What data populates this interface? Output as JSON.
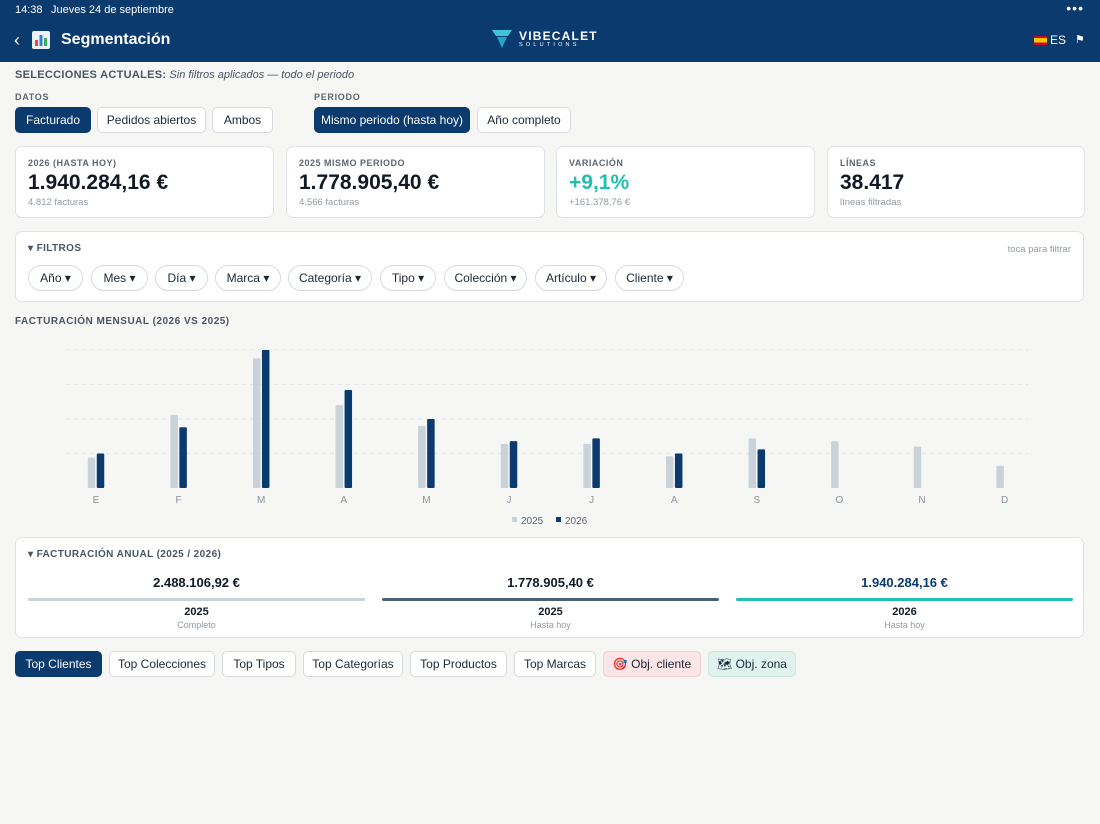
{
  "status_bar": {
    "time": "14:38",
    "date": "Jueves 24 de septiembre",
    "dots": "•••"
  },
  "header": {
    "back": "‹",
    "title": "Segmentación",
    "title_icon": "bar-chart-icon",
    "logo_name": "VIBECALET",
    "logo_sub": "SOLUTIONS",
    "language": "ES",
    "flag_action_icon": "flag-icon"
  },
  "selections": {
    "label": "SELECCIONES ACTUALES:",
    "value": "Sin filtros aplicados — todo el periodo"
  },
  "datos": {
    "label": "DATOS",
    "options": [
      "Facturado",
      "Pedidos abiertos",
      "Ambos"
    ],
    "selected": "Facturado"
  },
  "periodo": {
    "label": "PERIODO",
    "options": [
      "Mismo periodo (hasta hoy)",
      "Año completo"
    ],
    "selected": "Mismo periodo (hasta hoy)"
  },
  "kpis": [
    {
      "label": "2026 (HASTA HOY)",
      "value": "1.940.284,16 €",
      "sub": "4.812 facturas"
    },
    {
      "label": "2025 MISMO PERIODO",
      "value": "1.778.905,40 €",
      "sub": "4.566 facturas"
    },
    {
      "label": "VARIACIÓN",
      "value": "+9,1%",
      "sub": "+161.378,76 €"
    },
    {
      "label": "LÍNEAS",
      "value": "38.417",
      "sub": "líneas filtradas"
    }
  ],
  "filters": {
    "title": "▾ FILTROS",
    "hint": "toca para filtrar",
    "chips": [
      "Año ▾",
      "Mes ▾",
      "Día ▾",
      "Marca ▾",
      "Categoría ▾",
      "Tipo ▾",
      "Colección ▾",
      "Artículo ▾",
      "Cliente ▾"
    ]
  },
  "monthly_chart": {
    "title": "FACTURACIÓN MENSUAL (2026 VS 2025)"
  },
  "chart_data": {
    "type": "bar",
    "title": "FACTURACIÓN MENSUAL (2026 VS 2025)",
    "categories": [
      "E",
      "F",
      "M",
      "A",
      "M",
      "J",
      "J",
      "A",
      "S",
      "O",
      "N",
      "D"
    ],
    "series": [
      {
        "name": "2025",
        "color": "#c9d1d9",
        "values": [
          22,
          53,
          94,
          60,
          45,
          32,
          32,
          23,
          36,
          34,
          30,
          16
        ]
      },
      {
        "name": "2026",
        "color": "#0b3a6e",
        "values": [
          25,
          44,
          100,
          71,
          50,
          34,
          36,
          25,
          28,
          null,
          null,
          null
        ]
      }
    ],
    "ylim": [
      0,
      100
    ],
    "grid": true,
    "legend_position": "bottom-center"
  },
  "annual": {
    "title": "▾ FACTURACIÓN ANUAL (2025 / 2026)",
    "columns": [
      {
        "value": "2.488.106,92 €",
        "year": "2025",
        "sub": "Completo",
        "color": "#c9d1d9"
      },
      {
        "value": "1.778.905,40 €",
        "year": "2025",
        "sub": "Hasta hoy",
        "color": "#4a6278"
      },
      {
        "value": "1.940.284,16 €",
        "year": "2026",
        "sub": "Hasta hoy",
        "color": "#22c0b0"
      }
    ]
  },
  "tabs": {
    "items": [
      "Top Clientes",
      "Top Colecciones",
      "Top Tipos",
      "Top Categorías",
      "Top Productos",
      "Top Marcas",
      "🎯 Obj. cliente",
      "🗺 Obj. zona"
    ],
    "selected": "Top Clientes"
  },
  "colors": {
    "brand": "#0b3a6e",
    "accent": "#22c0b0",
    "series_2025": "#c9d1d9"
  }
}
